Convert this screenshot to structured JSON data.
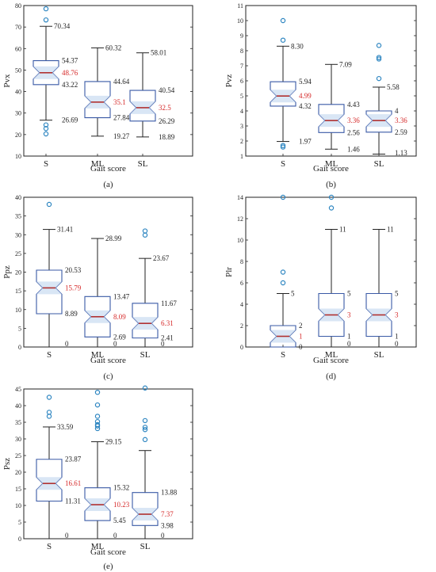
{
  "chart_data": [
    {
      "type": "boxplot",
      "ylabel": "Pvx",
      "xlabel": "Gait score",
      "caption": "(a)",
      "ylim": [
        10,
        80
      ],
      "yticks": [
        10,
        20,
        30,
        40,
        50,
        60,
        70,
        80
      ],
      "categories": [
        "S",
        "ML",
        "SL"
      ],
      "boxes": [
        {
          "category": "S",
          "lower_whisker": 26.69,
          "q1": 43.22,
          "median": 48.76,
          "q3": 54.37,
          "upper_whisker": 70.34,
          "outliers": [
            78.5,
            73.3,
            24.5,
            22.8,
            20.3
          ],
          "labels": {
            "upper": "70.34",
            "q3": "54.37",
            "median": "48.76",
            "q1": "43.22",
            "lower": "26.69"
          }
        },
        {
          "category": "ML",
          "lower_whisker": 19.27,
          "q1": 27.84,
          "median": 35.1,
          "q3": 44.64,
          "upper_whisker": 60.32,
          "outliers": [],
          "labels": {
            "upper": "60.32",
            "q3": "44.64",
            "median": "35.1",
            "q1": "27.84",
            "lower": "19.27"
          }
        },
        {
          "category": "SL",
          "lower_whisker": 18.89,
          "q1": 26.29,
          "median": 32.5,
          "q3": 40.54,
          "upper_whisker": 58.01,
          "outliers": [],
          "labels": {
            "upper": "58.01",
            "q3": "40.54",
            "median": "32.5",
            "q1": "26.29",
            "lower": "18.89"
          }
        }
      ]
    },
    {
      "type": "boxplot",
      "ylabel": "Pvz",
      "xlabel": "Gait score",
      "caption": "(b)",
      "ylim": [
        1,
        11
      ],
      "yticks": [
        1,
        2,
        3,
        4,
        5,
        6,
        7,
        8,
        9,
        10,
        11
      ],
      "categories": [
        "S",
        "ML",
        "SL"
      ],
      "boxes": [
        {
          "category": "S",
          "lower_whisker": 1.97,
          "q1": 4.32,
          "median": 4.99,
          "q3": 5.94,
          "upper_whisker": 8.3,
          "outliers": [
            10.0,
            8.7,
            1.7,
            1.6
          ],
          "labels": {
            "upper": "8.30",
            "q3": "5.94",
            "median": "4.99",
            "q1": "4.32",
            "lower": "1.97"
          }
        },
        {
          "category": "ML",
          "lower_whisker": 1.46,
          "q1": 2.56,
          "median": 3.36,
          "q3": 4.43,
          "upper_whisker": 7.09,
          "outliers": [],
          "labels": {
            "upper": "7.09",
            "q3": "4.43",
            "median": "3.36",
            "q1": "2.56",
            "lower": "1.46"
          }
        },
        {
          "category": "SL",
          "lower_whisker": 1.13,
          "q1": 2.59,
          "median": 3.36,
          "q3": 4.0,
          "upper_whisker": 5.58,
          "outliers": [
            8.35,
            7.55,
            7.45,
            6.15
          ],
          "labels": {
            "upper": "5.58",
            "q3": "4",
            "median": "3.36",
            "q1": "2.59",
            "lower": "1.13"
          }
        }
      ]
    },
    {
      "type": "boxplot",
      "ylabel": "Ppz",
      "xlabel": "Gait score",
      "caption": "(c)",
      "ylim": [
        0,
        40
      ],
      "yticks": [
        0,
        5,
        10,
        15,
        20,
        25,
        30,
        35,
        40
      ],
      "categories": [
        "S",
        "ML",
        "SL"
      ],
      "boxes": [
        {
          "category": "S",
          "lower_whisker": 0,
          "q1": 8.89,
          "median": 15.79,
          "q3": 20.53,
          "upper_whisker": 31.41,
          "outliers": [
            38.1
          ],
          "labels": {
            "upper": "31.41",
            "q3": "20.53",
            "median": "15.79",
            "q1": "8.89",
            "lower": "0"
          }
        },
        {
          "category": "ML",
          "lower_whisker": 0,
          "q1": 2.69,
          "median": 8.09,
          "q3": 13.47,
          "upper_whisker": 28.99,
          "outliers": [],
          "labels": {
            "upper": "28.99",
            "q3": "13.47",
            "median": "8.09",
            "q1": "2.69",
            "lower": "0"
          }
        },
        {
          "category": "SL",
          "lower_whisker": 0,
          "q1": 2.41,
          "median": 6.31,
          "q3": 11.67,
          "upper_whisker": 23.67,
          "outliers": [
            31.0,
            29.9
          ],
          "labels": {
            "upper": "23.67",
            "q3": "11.67",
            "median": "6.31",
            "q1": "2.41",
            "lower": "0"
          }
        }
      ]
    },
    {
      "type": "boxplot",
      "ylabel": "Plr",
      "xlabel": "Gait score",
      "caption": "(d)",
      "ylim": [
        0,
        14
      ],
      "yticks": [
        0,
        2,
        4,
        6,
        8,
        10,
        12,
        14
      ],
      "categories": [
        "S",
        "ML",
        "SL"
      ],
      "boxes": [
        {
          "category": "S",
          "lower_whisker": 0,
          "q1": 0,
          "median": 1,
          "q3": 2,
          "upper_whisker": 5,
          "outliers": [
            14,
            7,
            6
          ],
          "labels": {
            "upper": "5",
            "q3": "2",
            "median": "1",
            "q1": "0",
            "lower": ""
          }
        },
        {
          "category": "ML",
          "lower_whisker": 0,
          "q1": 1,
          "median": 3,
          "q3": 5,
          "upper_whisker": 11,
          "outliers": [
            14,
            13
          ],
          "labels": {
            "upper": "11",
            "q3": "5",
            "median": "3",
            "q1": "1",
            "lower": "0"
          }
        },
        {
          "category": "SL",
          "lower_whisker": 0,
          "q1": 1,
          "median": 3,
          "q3": 5,
          "upper_whisker": 11,
          "outliers": [],
          "labels": {
            "upper": "11",
            "q3": "5",
            "median": "3",
            "q1": "1",
            "lower": "0"
          }
        }
      ]
    },
    {
      "type": "boxplot",
      "ylabel": "Psz",
      "xlabel": "Gait score",
      "caption": "(e)",
      "ylim": [
        0,
        45
      ],
      "yticks": [
        0,
        5,
        10,
        15,
        20,
        25,
        30,
        35,
        40,
        45
      ],
      "categories": [
        "S",
        "ML",
        "SL"
      ],
      "boxes": [
        {
          "category": "S",
          "lower_whisker": 0,
          "q1": 11.31,
          "median": 16.61,
          "q3": 23.87,
          "upper_whisker": 33.59,
          "outliers": [
            42.5,
            38.0,
            36.8
          ],
          "labels": {
            "upper": "33.59",
            "q3": "23.87",
            "median": "16.61",
            "q1": "11.31",
            "lower": "0"
          }
        },
        {
          "category": "ML",
          "lower_whisker": 0,
          "q1": 5.45,
          "median": 10.23,
          "q3": 15.32,
          "upper_whisker": 29.15,
          "outliers": [
            44.0,
            40.2,
            36.8,
            35.2,
            34.3,
            33.9,
            33.1
          ],
          "labels": {
            "upper": "29.15",
            "q3": "15.32",
            "median": "10.23",
            "q1": "5.45",
            "lower": "0"
          }
        },
        {
          "category": "SL",
          "lower_whisker": 0,
          "q1": 3.98,
          "median": 7.37,
          "q3": 13.88,
          "upper_whisker": 26.5,
          "outliers": [
            45.3,
            35.5,
            33.5,
            32.8,
            29.8
          ],
          "labels": {
            "upper": "",
            "q3": "13.88",
            "median": "7.37",
            "q1": "3.98",
            "lower": "0"
          }
        }
      ]
    }
  ],
  "colors": {
    "box_stroke": "#3a5aa6",
    "box_fill": "#ffffff",
    "notch_fill": "#cfe0f2",
    "median_line": "#b03030",
    "median_label": "#d62a2a",
    "outlier": "#2e86c1",
    "whisker": "#222222"
  }
}
